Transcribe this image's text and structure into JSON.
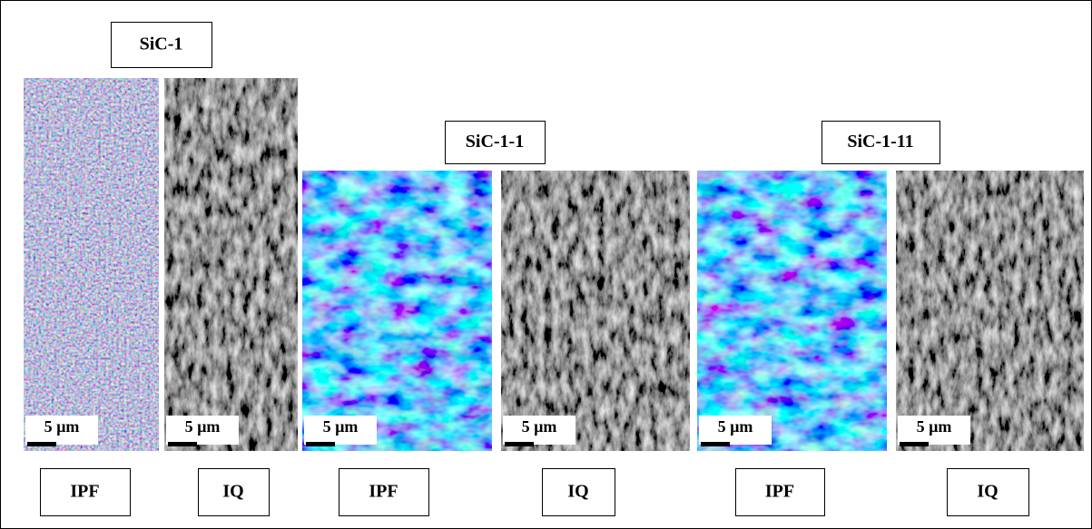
{
  "figure": {
    "groups": [
      {
        "title": "SiC-1",
        "panels": [
          {
            "scale_label": "5 µm",
            "label": "IPF"
          },
          {
            "scale_label": "5 µm",
            "label": "IQ"
          }
        ]
      },
      {
        "title": "SiC-1-1",
        "panels": [
          {
            "scale_label": "5 µm",
            "label": "IPF"
          },
          {
            "scale_label": "5 µm",
            "label": "IQ"
          }
        ]
      },
      {
        "title": "SiC-1-11",
        "panels": [
          {
            "scale_label": "5 µm",
            "label": "IPF"
          },
          {
            "scale_label": "5 µm",
            "label": "IQ"
          }
        ]
      }
    ]
  }
}
